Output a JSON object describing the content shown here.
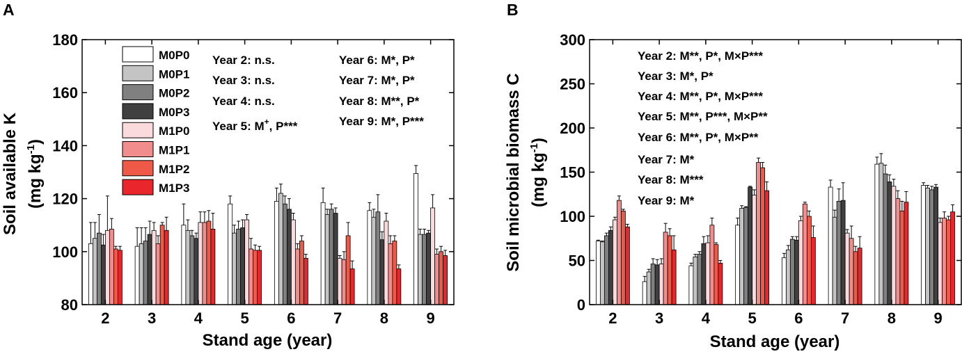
{
  "colors": {
    "M0P0": "#ffffff",
    "M0P1": "#c4c4c4",
    "M0P2": "#808080",
    "M0P3": "#404040",
    "M1P0": "#fadadd",
    "M1P1": "#f28d8d",
    "M1P2": "#ee5a47",
    "M1P3": "#e8262b",
    "axis": "#000000"
  },
  "legend": [
    "M0P0",
    "M0P1",
    "M0P2",
    "M0P3",
    "M1P0",
    "M1P1",
    "M1P2",
    "M1P3"
  ],
  "chart_data": [
    {
      "panel": "A",
      "type": "bar",
      "xlabel": "Stand age (year)",
      "ylabel_line1": "Soil available K",
      "ylabel_line2_pre": "(mg kg",
      "ylabel_sup": "-1",
      "ylabel_line2_post": ")",
      "ylim": [
        80,
        180
      ],
      "yticks": [
        80,
        100,
        120,
        140,
        160,
        180
      ],
      "categories": [
        "2",
        "3",
        "4",
        "5",
        "6",
        "7",
        "8",
        "9"
      ],
      "series": [
        {
          "name": "M0P0",
          "values": [
            103,
            102,
            110,
            118,
            119,
            118.5,
            115.5,
            129.5
          ],
          "errors": [
            8,
            7,
            8,
            3,
            5,
            5.5,
            3,
            3
          ]
        },
        {
          "name": "M0P1",
          "values": [
            105,
            103,
            108,
            107,
            122,
            114,
            113,
            106.5
          ],
          "errors": [
            6,
            6,
            4,
            3,
            3.5,
            2,
            3,
            2
          ]
        },
        {
          "name": "M0P2",
          "values": [
            107,
            104,
            106,
            108.5,
            118,
            116,
            115,
            106.5
          ],
          "errors": [
            7,
            5,
            2,
            3,
            3,
            2,
            6.5,
            2
          ]
        },
        {
          "name": "M0P3",
          "values": [
            102.5,
            106.5,
            105,
            109,
            116,
            114.5,
            104.5,
            107
          ],
          "errors": [
            4,
            5,
            2,
            3,
            4,
            2,
            3,
            1
          ]
        },
        {
          "name": "M1P0",
          "values": [
            108,
            108,
            111,
            112,
            112,
            97.5,
            111.5,
            116.5
          ],
          "errors": [
            13,
            3,
            4,
            2,
            2.5,
            1,
            3,
            5
          ]
        },
        {
          "name": "M1P1",
          "values": [
            108.5,
            103,
            111,
            101,
            101,
            97,
            103,
            99
          ],
          "errors": [
            4,
            3,
            4,
            4,
            2,
            3,
            3,
            2
          ]
        },
        {
          "name": "M1P2",
          "values": [
            101,
            110,
            111.5,
            100.5,
            104,
            106,
            104,
            100
          ],
          "errors": [
            1,
            1,
            4,
            2,
            2,
            5,
            2,
            2
          ]
        },
        {
          "name": "M1P3",
          "values": [
            100.5,
            108,
            108.5,
            100.5,
            97.5,
            93.5,
            93.5,
            98.5
          ],
          "errors": [
            1.5,
            5,
            6,
            1.5,
            1.5,
            3,
            1.5,
            2
          ]
        }
      ],
      "annotations_col1": [
        "Year 2: n.s.",
        "Year 3: n.s.",
        "Year 4: n.s."
      ],
      "annotation_y5_pre": "Year 5: M",
      "annotation_y5_sup": "+",
      "annotation_y5_post": ", P***",
      "annotations_col2": [
        "Year 6: M*, P*",
        "Year 7: M*, P*",
        "Year 8: M**, P*",
        "Year 9: M*, P***"
      ]
    },
    {
      "panel": "B",
      "type": "bar",
      "xlabel": "Stand age (year)",
      "ylabel_line1": "Soil microbial biomass C",
      "ylabel_line2_pre": "(mg kg",
      "ylabel_sup": "-1",
      "ylabel_line2_post": ")",
      "ylim": [
        0,
        300
      ],
      "yticks": [
        0,
        50,
        100,
        150,
        200,
        250,
        300
      ],
      "categories": [
        "2",
        "3",
        "4",
        "5",
        "6",
        "7",
        "8",
        "9"
      ],
      "series": [
        {
          "name": "M0P0",
          "values": [
            72,
            26,
            44,
            90,
            53,
            133,
            159,
            135
          ],
          "errors": [
            1,
            6,
            3,
            8,
            5,
            8,
            8,
            3
          ]
        },
        {
          "name": "M0P1",
          "values": [
            71,
            37,
            54,
            109,
            62,
            99,
            160,
            132
          ],
          "errors": [
            1,
            3,
            3,
            3,
            5,
            8,
            11,
            3
          ]
        },
        {
          "name": "M0P2",
          "values": [
            78,
            46,
            57,
            110,
            74,
            117,
            148,
            130
          ],
          "errors": [
            3,
            6,
            3,
            1,
            3,
            14,
            10,
            4
          ]
        },
        {
          "name": "M0P3",
          "values": [
            84,
            45,
            69,
            133,
            73,
            118,
            139,
            133
          ],
          "errors": [
            4,
            6,
            8,
            1,
            4,
            20,
            8,
            3
          ]
        },
        {
          "name": "M1P0",
          "values": [
            96,
            46,
            70,
            124,
            95,
            81,
            134,
            93
          ],
          "errors": [
            3,
            6,
            8,
            6,
            5,
            4,
            8,
            5
          ]
        },
        {
          "name": "M1P1",
          "values": [
            118,
            82,
            90,
            161,
            114,
            75,
            120,
            98
          ],
          "errors": [
            5,
            10,
            8,
            5,
            2,
            14,
            9,
            7
          ]
        },
        {
          "name": "M1P2",
          "values": [
            106,
            78,
            68,
            155,
            100,
            60,
            106,
            96
          ],
          "errors": [
            2,
            8,
            2,
            6,
            6,
            6,
            11,
            4
          ]
        },
        {
          "name": "M1P3",
          "values": [
            88,
            62,
            47,
            129,
            76,
            64,
            116,
            105
          ],
          "errors": [
            3,
            16,
            3,
            10,
            13,
            13,
            12,
            8
          ]
        }
      ],
      "annotations": [
        "Year 2: M**, P*, M×P***",
        "Year 3: M*, P*",
        "Year 4: M**, P*, M×P***",
        "Year 5: M**, P***, M×P**",
        "Year 6: M**, P*, M×P**",
        "Year 7: M*",
        "Year 8: M***",
        "Year 9: M*"
      ]
    }
  ]
}
